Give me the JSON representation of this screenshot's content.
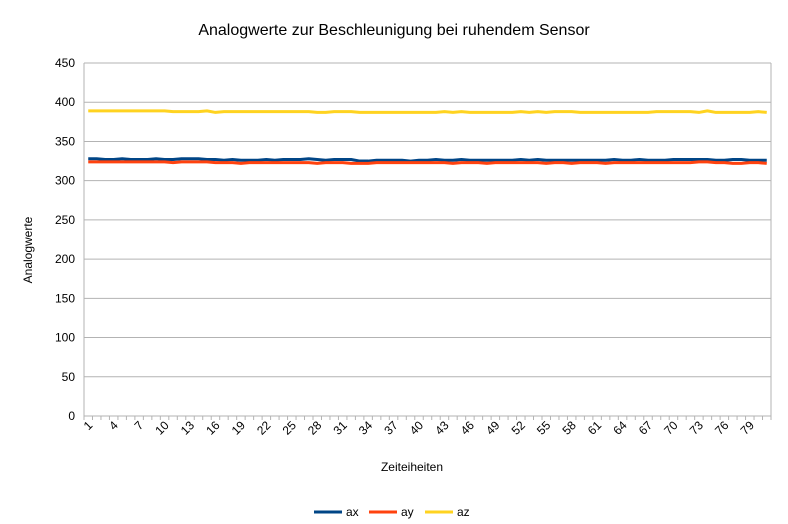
{
  "chart_data": {
    "type": "line",
    "title": "Analogwerte zur Beschleunigung bei ruhendem Sensor",
    "xlabel": "Zeiteiheiten",
    "ylabel": "Analogwerte",
    "ylim": [
      0,
      450
    ],
    "yticks": [
      0,
      50,
      100,
      150,
      200,
      250,
      300,
      350,
      400,
      450
    ],
    "x_count": 81,
    "xtick_labels": [
      "1",
      "4",
      "7",
      "10",
      "13",
      "16",
      "19",
      "22",
      "25",
      "28",
      "31",
      "34",
      "37",
      "40",
      "43",
      "46",
      "49",
      "52",
      "55",
      "58",
      "61",
      "64",
      "67",
      "70",
      "73",
      "76",
      "79"
    ],
    "grid": true,
    "legend_position": "bottom",
    "series": [
      {
        "name": "ax",
        "color": "#004586",
        "values": [
          328,
          328,
          327,
          327,
          328,
          327,
          327,
          327,
          328,
          327,
          327,
          328,
          328,
          328,
          327,
          327,
          326,
          327,
          326,
          326,
          326,
          327,
          326,
          327,
          327,
          327,
          328,
          327,
          326,
          327,
          327,
          327,
          325,
          325,
          326,
          326,
          326,
          326,
          325,
          326,
          326,
          327,
          326,
          326,
          327,
          326,
          326,
          326,
          326,
          326,
          326,
          327,
          326,
          327,
          326,
          326,
          326,
          326,
          326,
          326,
          326,
          326,
          327,
          326,
          326,
          327,
          326,
          326,
          326,
          327,
          327,
          327,
          327,
          327,
          326,
          326,
          327,
          327,
          326,
          326,
          326
        ]
      },
      {
        "name": "ay",
        "color": "#ff420e",
        "values": [
          324,
          324,
          324,
          324,
          324,
          324,
          324,
          324,
          324,
          324,
          323,
          324,
          324,
          324,
          324,
          323,
          323,
          323,
          322,
          323,
          323,
          323,
          323,
          323,
          323,
          323,
          323,
          322,
          323,
          323,
          323,
          322,
          322,
          322,
          323,
          323,
          323,
          323,
          323,
          323,
          323,
          323,
          323,
          322,
          323,
          323,
          323,
          322,
          323,
          323,
          323,
          323,
          323,
          323,
          322,
          323,
          323,
          322,
          323,
          323,
          323,
          322,
          323,
          323,
          323,
          323,
          323,
          323,
          323,
          323,
          323,
          323,
          324,
          324,
          323,
          323,
          322,
          322,
          323,
          323,
          322
        ]
      },
      {
        "name": "az",
        "color": "#ffd320",
        "values": [
          389,
          389,
          389,
          389,
          389,
          389,
          389,
          389,
          389,
          389,
          388,
          388,
          388,
          388,
          389,
          387,
          388,
          388,
          388,
          388,
          388,
          388,
          388,
          388,
          388,
          388,
          388,
          387,
          387,
          388,
          388,
          388,
          387,
          387,
          387,
          387,
          387,
          387,
          387,
          387,
          387,
          387,
          388,
          387,
          388,
          387,
          387,
          387,
          387,
          387,
          387,
          388,
          387,
          388,
          387,
          388,
          388,
          388,
          387,
          387,
          387,
          387,
          387,
          387,
          387,
          387,
          387,
          388,
          388,
          388,
          388,
          388,
          387,
          389,
          387,
          387,
          387,
          387,
          387,
          388,
          387
        ]
      }
    ]
  }
}
